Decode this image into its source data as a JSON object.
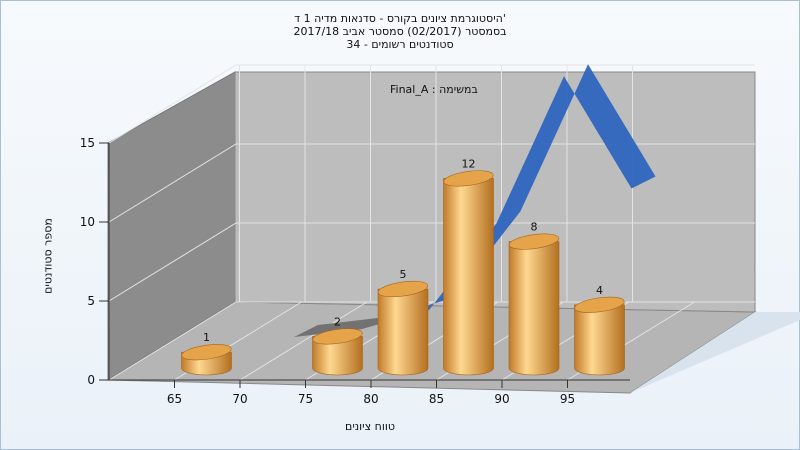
{
  "title": {
    "line1": "היסטוגרמת ציונים בקורס - סדנאות מדיה 1 ד'",
    "line2": "בסמסטר (02/2017) סמסטר אביב 2017/18",
    "line3": "סטודנטים רשומים - 34"
  },
  "chart_data": {
    "type": "bar",
    "subtitle": "Final_A : במשימה",
    "xlabel": "טווח ציונים",
    "ylabel": "מספר סטודנטים",
    "x_ticks": [
      65,
      70,
      75,
      80,
      85,
      90,
      95
    ],
    "y_ticks": [
      0,
      5,
      10,
      15
    ],
    "ylim": [
      0,
      15
    ],
    "categories": [
      65,
      75,
      80,
      85,
      90,
      95
    ],
    "values": [
      1,
      2,
      5,
      12,
      8,
      4
    ],
    "data_labels": [
      "1",
      "2",
      "5",
      "12",
      "8",
      "4"
    ],
    "bar_color": "#e5a44a",
    "curve": {
      "type": "area",
      "x": [
        70,
        75,
        80,
        85,
        90,
        95
      ],
      "values": [
        0,
        0.5,
        1.7,
        7.2,
        16.5,
        9.4
      ],
      "color_low": "#6e6e6e",
      "color_high": "#2f66bf"
    },
    "grid": true,
    "legend": "none"
  }
}
